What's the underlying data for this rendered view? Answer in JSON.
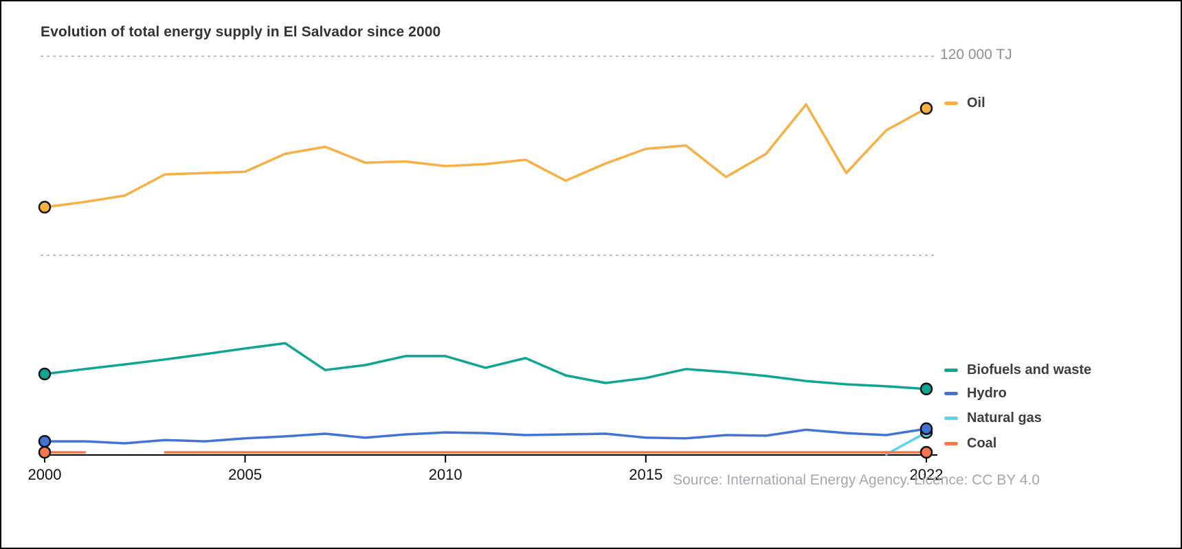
{
  "chart_data": {
    "type": "line",
    "title": "Evolution of total energy supply in El Salvador since 2000",
    "unit_label": "120 000 TJ",
    "ylabel": "TJ",
    "ylim": [
      0,
      120000
    ],
    "gridlines": [
      60000,
      120000
    ],
    "grid_on": true,
    "legend_position": "right-of-line-ends",
    "x": [
      2000,
      2001,
      2002,
      2003,
      2004,
      2005,
      2006,
      2007,
      2008,
      2009,
      2010,
      2011,
      2012,
      2013,
      2014,
      2015,
      2016,
      2017,
      2018,
      2019,
      2020,
      2021,
      2022
    ],
    "x_ticks": [
      {
        "year": 2000,
        "label": "2000"
      },
      {
        "year": 2005,
        "label": "2005"
      },
      {
        "year": 2010,
        "label": "2010"
      },
      {
        "year": 2015,
        "label": "2015"
      },
      {
        "year": 2022,
        "label": "2022"
      }
    ],
    "series": [
      {
        "id": "oil",
        "name": "Oil",
        "color": "#F9AE42",
        "markers": "ends",
        "values": [
          74500,
          76100,
          78000,
          84400,
          84800,
          85200,
          90600,
          92700,
          87900,
          88300,
          86900,
          87500,
          88800,
          82500,
          87700,
          92100,
          93100,
          83600,
          90600,
          105500,
          84800,
          97700,
          104300
        ]
      },
      {
        "id": "biofuels",
        "name": "Biofuels and waste",
        "color": "#0FA593",
        "markers": "ends",
        "values": [
          24200,
          25700,
          27100,
          28600,
          30200,
          31900,
          33500,
          25400,
          26900,
          29600,
          29600,
          26100,
          29000,
          23800,
          21500,
          23000,
          25700,
          24800,
          23600,
          22100,
          21100,
          20500,
          19700
        ]
      },
      {
        "id": "natural-gas",
        "name": "Natural gas",
        "color": "#58D3F3",
        "markers": "end",
        "values": [
          null,
          null,
          null,
          null,
          null,
          null,
          null,
          null,
          null,
          null,
          null,
          null,
          null,
          null,
          null,
          null,
          null,
          null,
          null,
          null,
          null,
          0,
          6600
        ]
      },
      {
        "id": "hydro",
        "name": "Hydro",
        "color": "#4273D8",
        "markers": "ends",
        "values": [
          3900,
          3900,
          3300,
          4300,
          3900,
          4800,
          5400,
          6200,
          5000,
          6000,
          6600,
          6400,
          5800,
          6000,
          6200,
          5000,
          4800,
          5800,
          5600,
          7400,
          6400,
          5800,
          7700
        ]
      },
      {
        "id": "coal",
        "name": "Coal",
        "color": "#F5764E",
        "markers": "ends",
        "values": [
          600,
          600,
          null,
          600,
          600,
          600,
          600,
          600,
          600,
          600,
          600,
          600,
          600,
          600,
          600,
          600,
          600,
          600,
          600,
          600,
          600,
          600,
          600
        ]
      }
    ],
    "source": "Source: International Energy Agency. Licence: CC BY 4.0"
  },
  "legend": {
    "items": [
      {
        "label": "Oil",
        "color": "#F9AE42"
      },
      {
        "label": "Biofuels and waste",
        "color": "#0FA593"
      },
      {
        "label": "Hydro",
        "color": "#4273D8"
      },
      {
        "label": "Natural gas",
        "color": "#58D3F3"
      },
      {
        "label": "Coal",
        "color": "#F5764E"
      }
    ]
  }
}
